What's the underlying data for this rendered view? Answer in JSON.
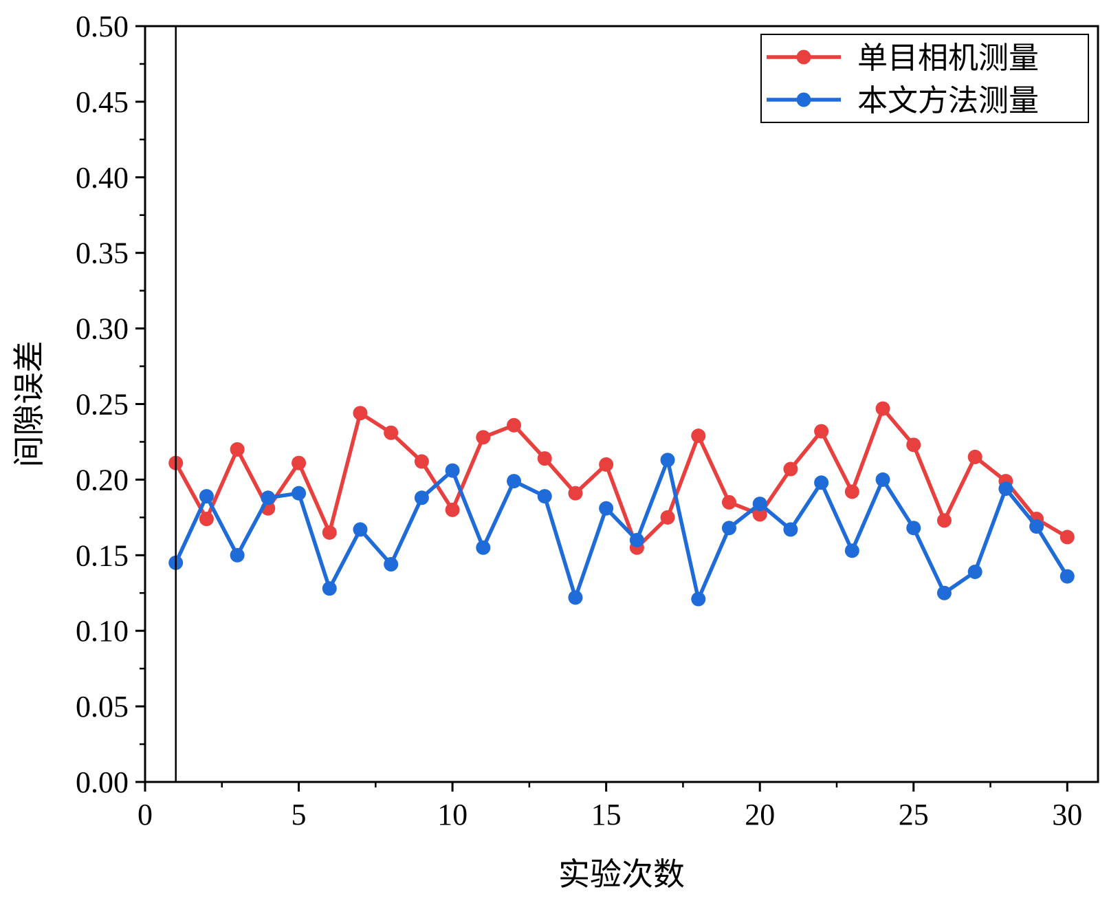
{
  "chart_data": {
    "type": "line",
    "xlabel": "实验次数",
    "ylabel": "间隙误差",
    "xlim": [
      0,
      31
    ],
    "ylim": [
      0,
      0.5
    ],
    "xticks": [
      "0",
      "5",
      "10",
      "15",
      "20",
      "25",
      "30"
    ],
    "yticks": [
      "0.00",
      "0.05",
      "0.10",
      "0.15",
      "0.20",
      "0.25",
      "0.30",
      "0.35",
      "0.40",
      "0.45",
      "0.50"
    ],
    "reference_line_x": 1,
    "legend_position": "top-right",
    "grid": false,
    "x": [
      1,
      2,
      3,
      4,
      5,
      6,
      7,
      8,
      9,
      10,
      11,
      12,
      13,
      14,
      15,
      16,
      17,
      18,
      19,
      20,
      21,
      22,
      23,
      24,
      25,
      26,
      27,
      28,
      29,
      30
    ],
    "series": [
      {
        "name": "单目相机测量",
        "color": "#E8403F",
        "values": [
          0.211,
          0.174,
          0.22,
          0.181,
          0.211,
          0.165,
          0.244,
          0.231,
          0.212,
          0.18,
          0.228,
          0.236,
          0.214,
          0.191,
          0.21,
          0.155,
          0.175,
          0.229,
          0.185,
          0.177,
          0.207,
          0.232,
          0.192,
          0.247,
          0.223,
          0.173,
          0.215,
          0.199,
          0.174,
          0.162
        ]
      },
      {
        "name": "本文方法测量",
        "color": "#1F6CD9",
        "values": [
          0.145,
          0.189,
          0.15,
          0.188,
          0.191,
          0.128,
          0.167,
          0.144,
          0.188,
          0.206,
          0.155,
          0.199,
          0.189,
          0.122,
          0.181,
          0.16,
          0.213,
          0.121,
          0.168,
          0.184,
          0.167,
          0.198,
          0.153,
          0.2,
          0.168,
          0.125,
          0.139,
          0.194,
          0.169,
          0.136
        ]
      }
    ]
  }
}
